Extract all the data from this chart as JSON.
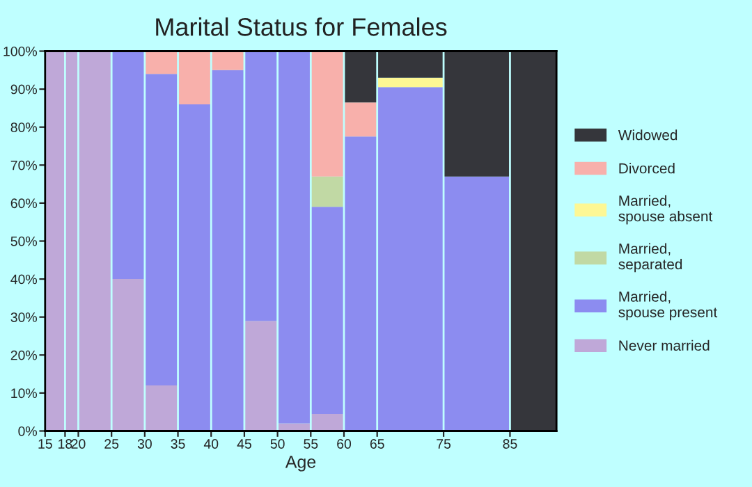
{
  "chart_data": {
    "type": "bar",
    "title": "Marital Status for Females",
    "xlabel": "Age",
    "x": [
      16.5,
      19,
      22.5,
      27.5,
      32.5,
      37.5,
      42.5,
      47.5,
      52.5,
      57.5,
      62.5,
      70,
      80,
      88.5
    ],
    "stacked": true,
    "series": [
      {
        "name": "Never married",
        "color": "#bfa8d8",
        "values": [
          100,
          100,
          100,
          40,
          12,
          null,
          null,
          29,
          2,
          4.5,
          null,
          null,
          null,
          null
        ]
      },
      {
        "name": "Married,\nspouse present",
        "color": "#8c8cf0",
        "values": [
          null,
          null,
          null,
          60,
          82,
          86,
          95,
          71,
          98,
          54.5,
          77.5,
          90.5,
          67,
          null
        ]
      },
      {
        "name": "Married,\nseparated",
        "color": "#c1d9a4",
        "values": [
          null,
          null,
          null,
          null,
          null,
          null,
          null,
          null,
          null,
          8,
          null,
          null,
          null,
          null
        ]
      },
      {
        "name": "Married,\nspouse absent",
        "color": "#fdf794",
        "values": [
          null,
          null,
          null,
          null,
          null,
          null,
          null,
          null,
          null,
          null,
          null,
          2.5,
          null,
          null
        ]
      },
      {
        "name": "Divorced",
        "color": "#f8b0ab",
        "values": [
          null,
          null,
          null,
          null,
          6,
          14,
          5,
          null,
          null,
          33,
          9,
          null,
          null,
          null
        ]
      },
      {
        "name": "Widowed",
        "color": "#35363b",
        "values": [
          null,
          null,
          null,
          null,
          null,
          null,
          null,
          null,
          null,
          null,
          13.5,
          7,
          33,
          100
        ]
      }
    ],
    "xlim": [
      15,
      92
    ],
    "xticks": [
      15,
      18,
      20,
      25,
      30,
      35,
      40,
      45,
      50,
      55,
      60,
      65,
      75,
      85
    ],
    "ylim": [
      0,
      100
    ],
    "yticks": [
      {
        "value": 0,
        "label": "0%"
      },
      {
        "value": 10,
        "label": "10%"
      },
      {
        "value": 20,
        "label": "20%"
      },
      {
        "value": 30,
        "label": "30%"
      },
      {
        "value": 40,
        "label": "40%"
      },
      {
        "value": 50,
        "label": "50%"
      },
      {
        "value": 60,
        "label": "60%"
      },
      {
        "value": 70,
        "label": "70%"
      },
      {
        "value": 80,
        "label": "80%"
      },
      {
        "value": 90,
        "label": "90%"
      },
      {
        "value": 100,
        "label": "100%"
      }
    ],
    "grid": "x",
    "legend": "right"
  }
}
